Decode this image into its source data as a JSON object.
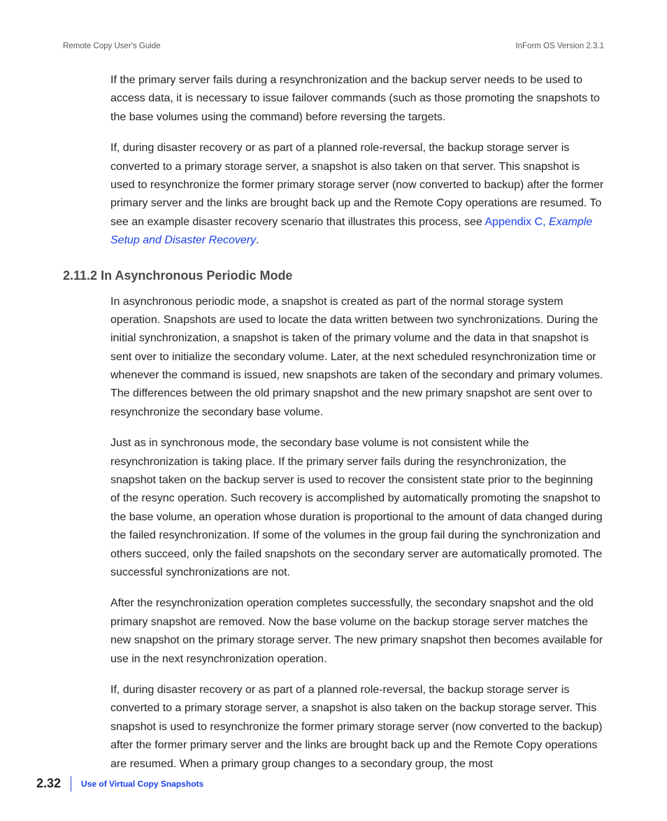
{
  "header": {
    "left": "Remote Copy User's Guide",
    "right": "InForm OS Version 2.3.1"
  },
  "paragraphs": {
    "p1": "If the primary server fails during a resynchronization and the backup server needs to be used to access data, it is necessary to issue failover commands (such as those promoting the snapshots to the base volumes using the                           command) before reversing the targets.",
    "p2_a": "If, during disaster recovery or as part of a planned role-reversal, the backup storage server is converted to a primary storage server, a snapshot is also taken on that server. This snapshot is used to resynchronize the former primary storage server (now converted to backup) after the former primary server and the links are brought back up and the Remote Copy operations are resumed. To see an example disaster recovery scenario that illustrates this process, see ",
    "p2_link1": "Appendix C, ",
    "p2_link2": "Example Setup and Disaster Recovery",
    "p2_b": ".",
    "p3": "In asynchronous periodic mode, a snapshot is created as part of the normal storage system operation. Snapshots are used to locate the data written between two synchronizations. During the initial synchronization, a snapshot is taken of the primary volume and the data in that snapshot is sent over to initialize the secondary volume. Later, at the next scheduled resynchronization time or whenever the                            command is issued, new snapshots are taken of the secondary and primary volumes. The differences between the old primary snapshot and the new primary snapshot are sent over to resynchronize the secondary base volume.",
    "p4": "Just as in synchronous mode, the secondary base volume is not consistent while the resynchronization is taking place. If the primary server fails during the resynchronization, the snapshot taken on the backup server is used to recover the consistent state prior to the beginning of the resync operation. Such recovery is accomplished by automatically promoting the snapshot to the base volume, an operation whose duration is proportional to the amount of data changed during the failed resynchronization. If some of the volumes in the group fail during the synchronization and others succeed, only the failed snapshots on the secondary server are automatically promoted. The successful synchronizations are not.",
    "p5": "After the resynchronization operation completes successfully, the secondary snapshot and the old primary snapshot are removed. Now the base volume on the backup storage server matches the new snapshot on the primary storage server. The new primary snapshot then becomes available for use in the next resynchronization operation.",
    "p6": "If, during disaster recovery or as part of a planned role-reversal, the backup storage server is converted to a primary storage server, a snapshot is also taken on the backup storage server. This snapshot is used to resynchronize the former primary storage server (now converted to the backup) after the former primary server and the links are brought back up and the Remote Copy operations are resumed. When a primary group changes to a secondary group, the most"
  },
  "section": {
    "number": "2.11.2",
    "title": "In Asynchronous Periodic Mode"
  },
  "footer": {
    "page": "2.32",
    "title": "Use of Virtual Copy Snapshots"
  }
}
